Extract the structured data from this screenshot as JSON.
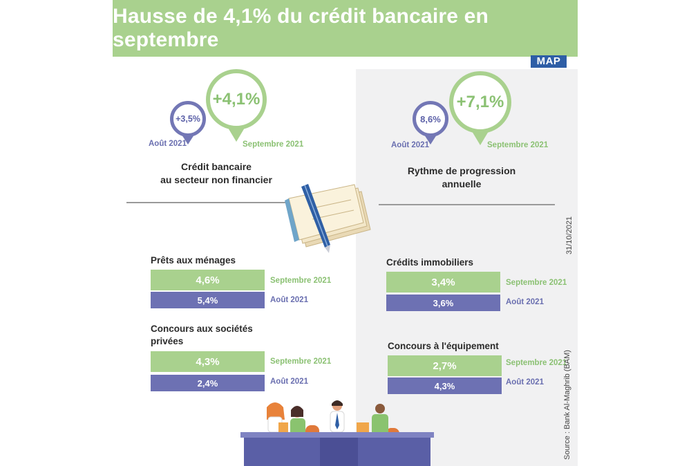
{
  "title": "Hausse de 4,1% du crédit bancaire en septembre",
  "logo": "MAP",
  "credit_bancaire": {
    "prev_value": "+3,5%",
    "prev_label": "Août 2021",
    "curr_value": "+4,1%",
    "curr_label": "Septembre 2021",
    "caption_line1": "Crédit bancaire",
    "caption_line2": "au secteur non financier"
  },
  "rythme": {
    "prev_value": "8,6%",
    "prev_label": "Août 2021",
    "curr_value": "+7,1%",
    "curr_label": "Septembre 2021",
    "caption_line1": "Rythme de progression",
    "caption_line2": "annuelle"
  },
  "sections": [
    {
      "title_line1": "Prêts aux ménages",
      "title_line2": "",
      "sept_value": "4,6%",
      "sept_label": "Septembre 2021",
      "aout_value": "5,4%",
      "aout_label": "Août 2021"
    },
    {
      "title_line1": "Concours aux sociétés",
      "title_line2": "privées",
      "sept_value": "4,3%",
      "sept_label": "Septembre 2021",
      "aout_value": "2,4%",
      "aout_label": "Août 2021"
    },
    {
      "title_line1": "Crédits immobiliers",
      "title_line2": "",
      "sept_value": "3,4%",
      "sept_label": "Septembre 2021",
      "aout_value": "3,6%",
      "aout_label": "Août 2021"
    },
    {
      "title_line1": "Concours à l'équipement",
      "title_line2": "",
      "sept_value": "2,7%",
      "sept_label": "Septembre 2021",
      "aout_value": "4,3%",
      "aout_label": "Août 2021"
    }
  ],
  "date": "31/10/2021",
  "source": "Source : Bank Al-Maghrib (BAM)",
  "colors": {
    "green": "#a9d18e",
    "blue": "#6d71b3",
    "logo_blue": "#2e5ea6"
  }
}
